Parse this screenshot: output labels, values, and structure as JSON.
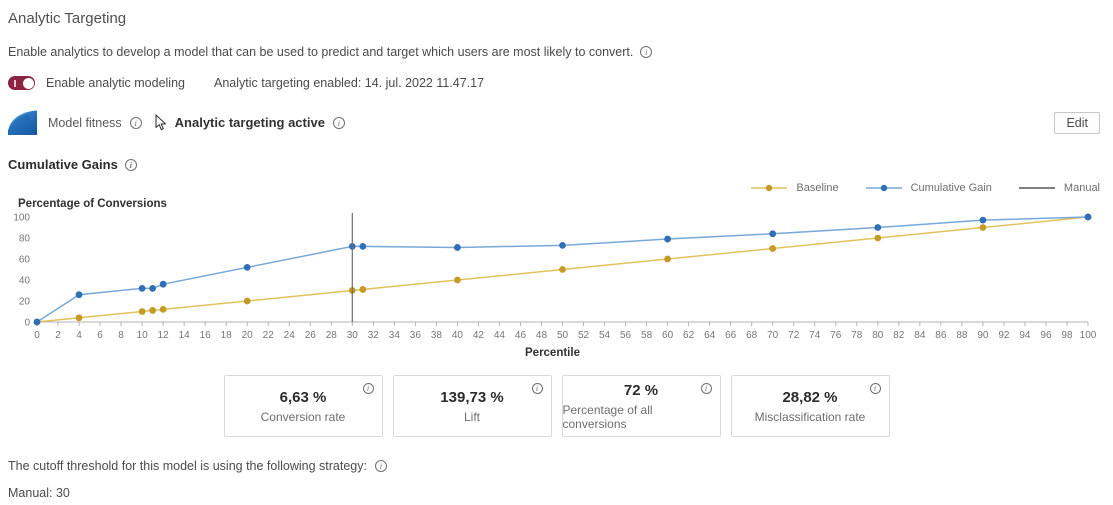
{
  "page": {
    "title": "Analytic Targeting",
    "description": "Enable analytics to develop a model that can be used to predict and target which users are most likely to convert.",
    "toggle": {
      "on": true,
      "color": "#8C2342",
      "label": "Enable analytic modeling",
      "enabled_text": "Analytic targeting enabled: 14. jul. 2022 11.47.17"
    },
    "model_row": {
      "fitness_label": "Model fitness",
      "status_label": "Analytic targeting active",
      "edit_button": "Edit"
    },
    "section_heading": "Cumulative Gains",
    "cards": [
      {
        "value": "6,63 %",
        "label": "Conversion rate"
      },
      {
        "value": "139,73 %",
        "label": "Lift"
      },
      {
        "value": "72 %",
        "label": "Percentage of all conversions"
      },
      {
        "value": "28,82 %",
        "label": "Misclassification rate"
      }
    ],
    "footer": {
      "strategy_text": "The cutoff threshold for this model is using the following strategy:",
      "strategy_value": "Manual: 30"
    }
  },
  "chart_data": {
    "type": "line",
    "title": "Cumulative Gains",
    "xlabel": "Percentile",
    "ylabel": "Percentage of Conversions",
    "xlim": [
      0,
      100
    ],
    "ylim": [
      0,
      100
    ],
    "xtick_step": 2,
    "yticks": [
      0,
      20,
      40,
      60,
      80,
      100
    ],
    "grid": false,
    "legend_position": "top-right",
    "series": [
      {
        "name": "Baseline",
        "color": "#E2C25C",
        "dot_color": "#C49B26",
        "x": [
          0,
          4,
          10,
          11,
          12,
          20,
          30,
          31,
          40,
          50,
          60,
          70,
          80,
          90,
          100
        ],
        "y": [
          0,
          4,
          10,
          11,
          12,
          20,
          30,
          31,
          40,
          50,
          60,
          70,
          80,
          90,
          100
        ]
      },
      {
        "name": "Cumulative Gain",
        "color": "#78A8D8",
        "dot_color": "#2E6FB7",
        "x": [
          0,
          4,
          10,
          11,
          12,
          20,
          30,
          31,
          40,
          50,
          60,
          70,
          80,
          90,
          100
        ],
        "y": [
          0,
          26,
          32,
          32,
          36,
          52,
          72,
          72,
          71,
          73,
          79,
          84,
          90,
          97,
          100
        ]
      },
      {
        "name": "Manual",
        "color": "#6E6E6E",
        "type": "vline",
        "x_value": 30
      }
    ]
  }
}
